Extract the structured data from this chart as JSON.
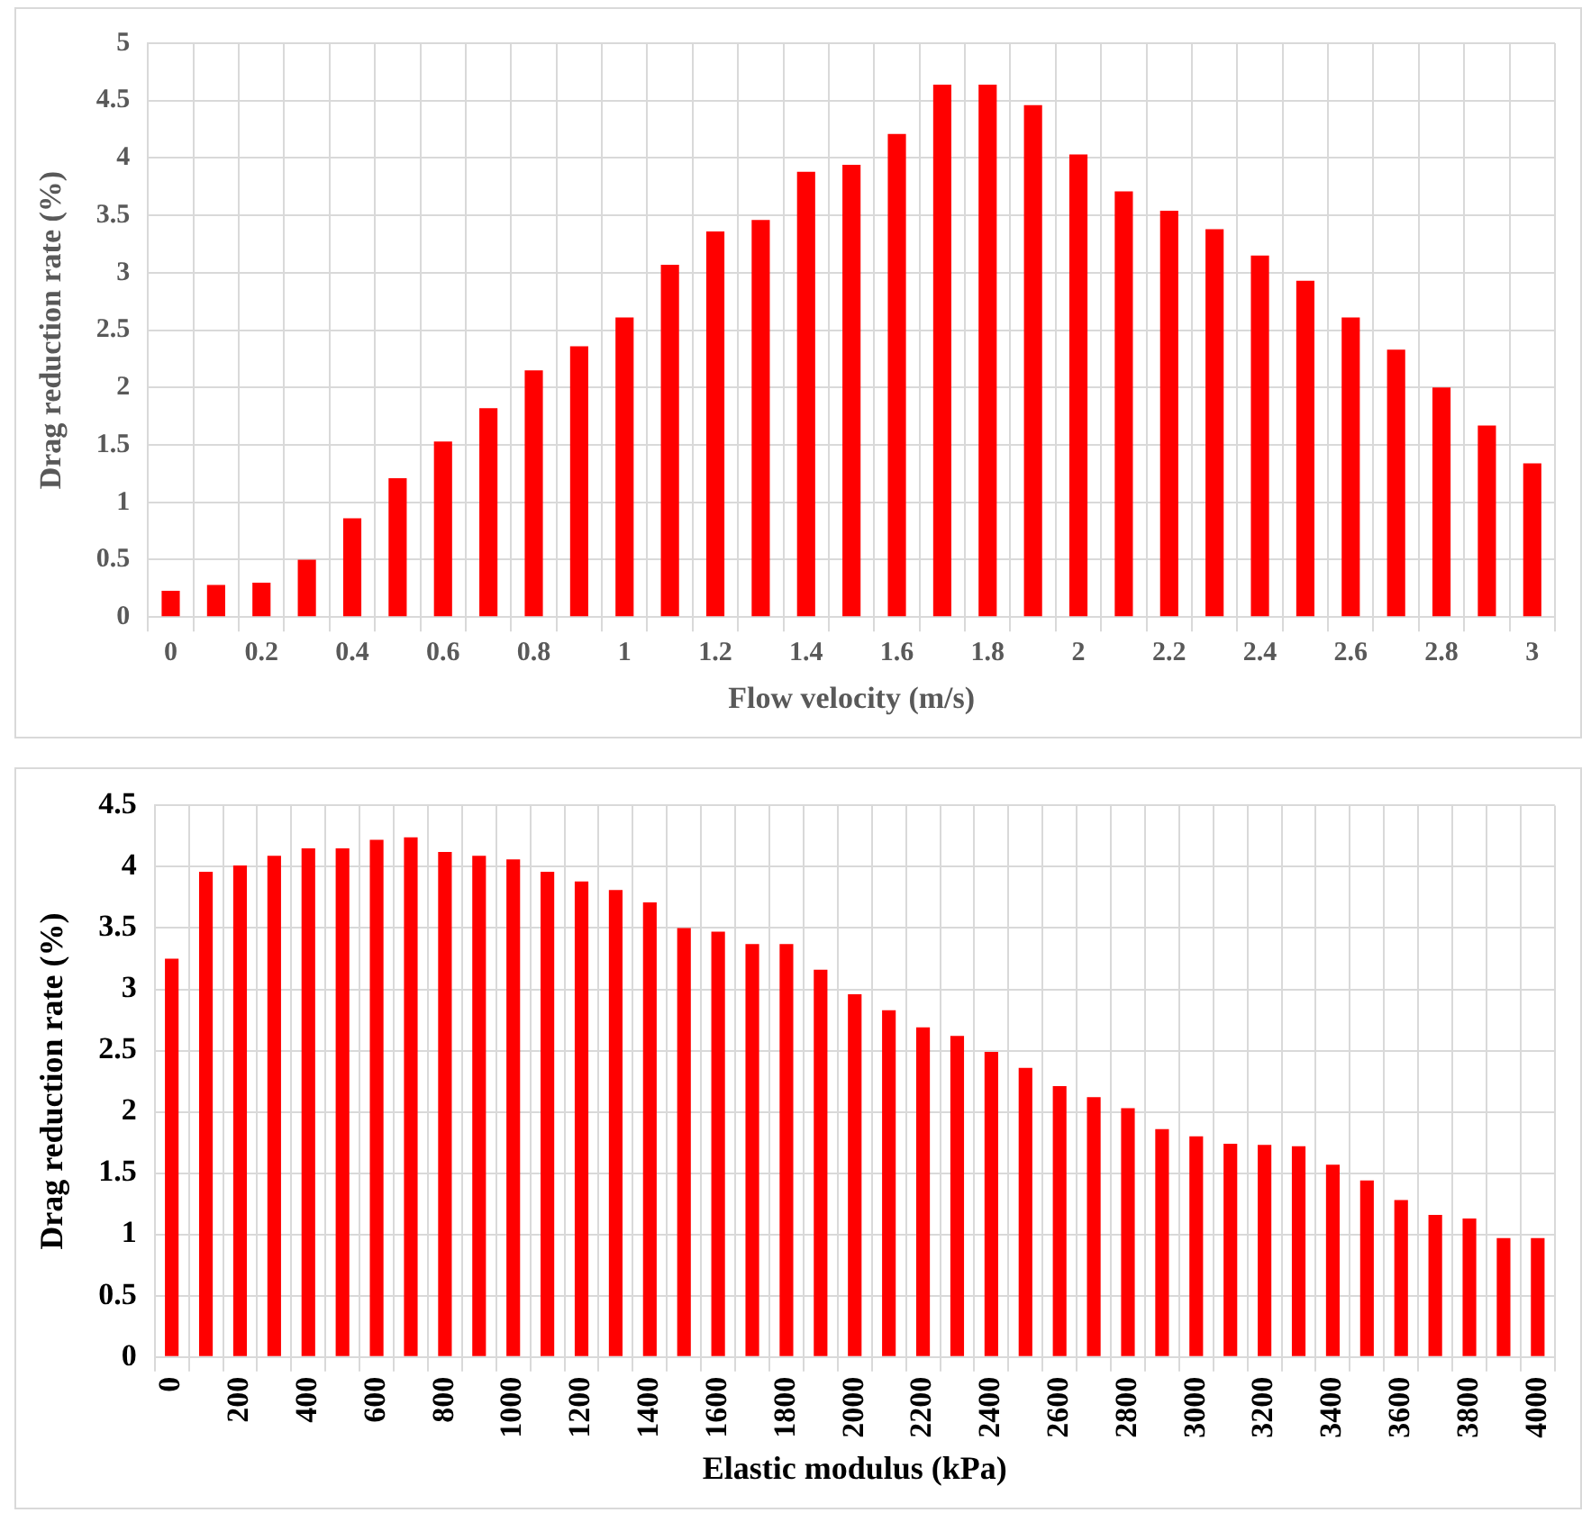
{
  "chart_data": [
    {
      "type": "bar",
      "xlabel": "Flow velocity (m/s)",
      "ylabel": "Drag reduction rate (%)",
      "categories": [
        "0",
        null,
        "0.2",
        null,
        "0.4",
        null,
        "0.6",
        null,
        "0.8",
        null,
        "1",
        null,
        "1.2",
        null,
        "1.4",
        null,
        "1.6",
        null,
        "1.8",
        null,
        "2",
        null,
        "2.2",
        null,
        "2.4",
        null,
        "2.6",
        null,
        "2.8",
        null,
        "3"
      ],
      "values": [
        0.23,
        0.28,
        0.3,
        0.5,
        0.86,
        1.21,
        1.53,
        1.82,
        2.15,
        2.36,
        2.61,
        3.07,
        3.36,
        3.46,
        3.88,
        3.94,
        4.21,
        4.64,
        4.64,
        4.46,
        4.03,
        3.71,
        3.54,
        3.38,
        3.15,
        2.93,
        2.61,
        2.33,
        2.0,
        1.67,
        1.34
      ],
      "color": "#ff0000",
      "ylim": [
        0,
        5
      ],
      "yticks": [
        0,
        0.5,
        1,
        1.5,
        2,
        2.5,
        3,
        3.5,
        4,
        4.5,
        5
      ],
      "grid": true
    },
    {
      "type": "bar",
      "xlabel": "Elastic modulus (kPa)",
      "ylabel": "Drag reduction rate (%)",
      "categories": [
        "0",
        null,
        "200",
        null,
        "400",
        null,
        "600",
        null,
        "800",
        null,
        "1000",
        null,
        "1200",
        null,
        "1400",
        null,
        "1600",
        null,
        "1800",
        null,
        "2000",
        null,
        "2200",
        null,
        "2400",
        null,
        "2600",
        null,
        "2800",
        null,
        "3000",
        null,
        "3200",
        null,
        "3400",
        null,
        "3600",
        null,
        "3800",
        null,
        "4000"
      ],
      "values": [
        3.25,
        3.96,
        4.01,
        4.09,
        4.15,
        4.15,
        4.22,
        4.24,
        4.12,
        4.09,
        4.06,
        3.96,
        3.88,
        3.81,
        3.71,
        3.5,
        3.47,
        3.37,
        3.37,
        3.16,
        2.96,
        2.83,
        2.69,
        2.62,
        2.49,
        2.36,
        2.21,
        2.12,
        2.03,
        1.86,
        1.8,
        1.74,
        1.73,
        1.72,
        1.57,
        1.44,
        1.28,
        1.16,
        1.13,
        0.97,
        0.97
      ],
      "color": "#ff0000",
      "ylim": [
        0,
        4.5
      ],
      "yticks": [
        0,
        0.5,
        1,
        1.5,
        2,
        2.5,
        3,
        3.5,
        4,
        4.5
      ],
      "grid": true
    }
  ]
}
